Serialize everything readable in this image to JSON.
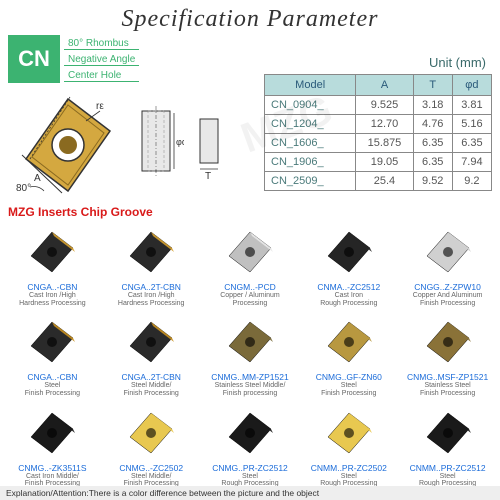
{
  "title": "Specification Parameter",
  "badge": {
    "code": "CN",
    "lines": [
      "80° Rhombus",
      "Negative Angle",
      "Center Hole"
    ]
  },
  "unit_label": "Unit (mm)",
  "table": {
    "headers": [
      "Model",
      "A",
      "T",
      "φd"
    ],
    "rows": [
      [
        "CN_0904_",
        "9.525",
        "3.18",
        "3.81"
      ],
      [
        "CN_1204_",
        "12.70",
        "4.76",
        "5.16"
      ],
      [
        "CN_1606_",
        "15.875",
        "6.35",
        "6.35"
      ],
      [
        "CN_1906_",
        "19.05",
        "6.35",
        "7.94"
      ],
      [
        "CN_2509_",
        "25.4",
        "9.52",
        "9.2"
      ]
    ]
  },
  "chip_note": "MZG Inserts Chip Groove",
  "diagram": {
    "angle_label": "80°",
    "dims": {
      "A": "A",
      "T": "T",
      "re": "rε",
      "phid": "φd"
    }
  },
  "items": [
    {
      "code": "CNGA..-CBN",
      "use": "Cast Iron /High\nHardness Processing",
      "color": "#2a2a2a",
      "accent": "#d4a030",
      "shape": "rhombus"
    },
    {
      "code": "CNGA..2T-CBN",
      "use": "Cast Iron /High\nHardness Processing",
      "color": "#2a2a2a",
      "accent": "#d4a030",
      "shape": "rhombus"
    },
    {
      "code": "CNGM..-PCD",
      "use": "Copper / Aluminum\nProcessing",
      "color": "#c0c0c0",
      "accent": "#e8e8e8",
      "shape": "rhombus"
    },
    {
      "code": "CNMA..-ZC2512",
      "use": "Cast Iron\nRough Processing",
      "color": "#252525",
      "accent": "#252525",
      "shape": "rhombus"
    },
    {
      "code": "CNGG..Z-ZPW10",
      "use": "Copper And Aluminum\nFinish Processing",
      "color": "#d0d0d0",
      "accent": "#d0d0d0",
      "shape": "rhombus"
    },
    {
      "code": "CNGA..-CBN",
      "use": "Steel\nFinish Processing",
      "color": "#2a2a2a",
      "accent": "#c89020",
      "shape": "rhombus"
    },
    {
      "code": "CNGA..2T-CBN",
      "use": "Steel Middle/\nFinish Processing",
      "color": "#2a2a2a",
      "accent": "#c89020",
      "shape": "rhombus"
    },
    {
      "code": "CNMG..MM-ZP1521",
      "use": "Stainless Steel Middle/\nFinish processing",
      "color": "#7a6a3a",
      "accent": "#7a6a3a",
      "shape": "rhombus"
    },
    {
      "code": "CNMG..GF-ZN60",
      "use": "Steel\nFinish Processing",
      "color": "#b89840",
      "accent": "#b89840",
      "shape": "rhombus"
    },
    {
      "code": "CNMG..MSF-ZP1521",
      "use": "Stainless Steel\nFinish Processing",
      "color": "#8a7238",
      "accent": "#8a7238",
      "shape": "rhombus"
    },
    {
      "code": "CNMG..-ZK3511S",
      "use": "Cast Iron Middle/\nFinish Processing",
      "color": "#1a1a1a",
      "accent": "#1a1a1a",
      "shape": "rhombus"
    },
    {
      "code": "CNMG..-ZC2502",
      "use": "Steel Middle/\nFinish Processing",
      "color": "#e8c850",
      "accent": "#e8c850",
      "shape": "rhombus"
    },
    {
      "code": "CNMG..PR-ZC2512",
      "use": "Steel\nRough Processing",
      "color": "#1a1a1a",
      "accent": "#1a1a1a",
      "shape": "rhombus"
    },
    {
      "code": "CNMM..PR-ZC2502",
      "use": "Steel\nRough Processing",
      "color": "#e8c850",
      "accent": "#e8c850",
      "shape": "rhombus"
    },
    {
      "code": "CNMM..PR-ZC2512",
      "use": "Steel\nRough Processing",
      "color": "#1a1a1a",
      "accent": "#1a1a1a",
      "shape": "rhombus"
    }
  ],
  "footer": "Explanation/Attention:There is a color difference between the picture and the object",
  "watermark": "MZG",
  "colors": {
    "brand_green": "#3cb371",
    "table_header_bg": "#b8dcdc",
    "link_blue": "#1a6bd9",
    "note_red": "#d91a1a"
  }
}
